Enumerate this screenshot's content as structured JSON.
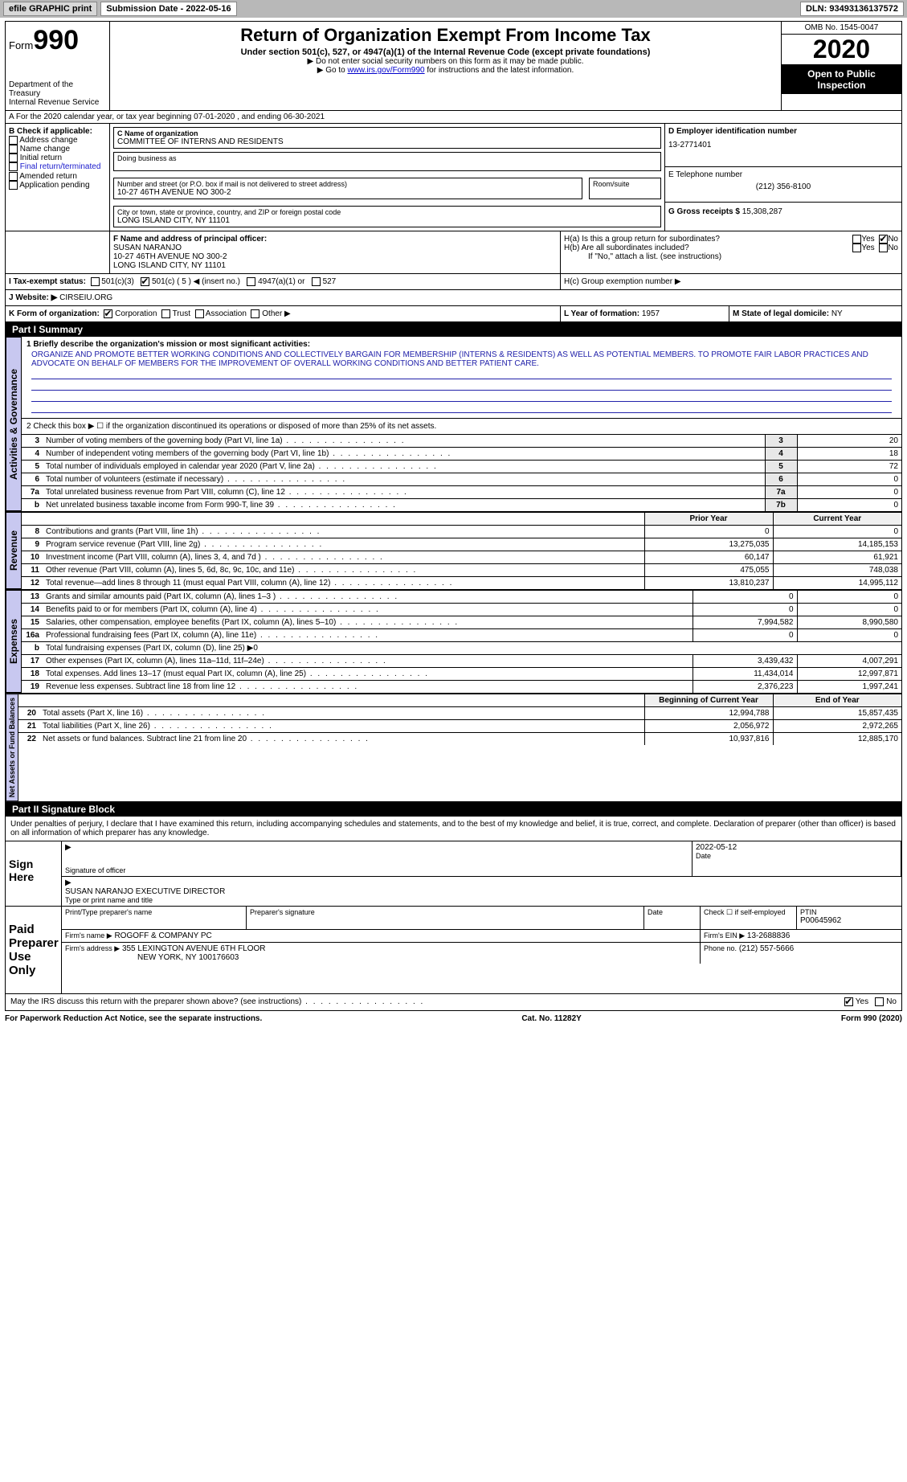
{
  "topbar": {
    "efile_label": "efile GRAPHIC print",
    "submission_label": "Submission Date - 2022-05-16",
    "dln_label": "DLN: 93493136137572"
  },
  "header": {
    "form_word": "Form",
    "form_num": "990",
    "dept1": "Department of the Treasury",
    "dept2": "Internal Revenue Service",
    "title": "Return of Organization Exempt From Income Tax",
    "subtitle": "Under section 501(c), 527, or 4947(a)(1) of the Internal Revenue Code (except private foundations)",
    "note1": "▶ Do not enter social security numbers on this form as it may be made public.",
    "note2_pre": "▶ Go to ",
    "note2_link": "www.irs.gov/Form990",
    "note2_post": " for instructions and the latest information.",
    "omb": "OMB No. 1545-0047",
    "year": "2020",
    "opi": "Open to Public Inspection"
  },
  "line_a": "A For the 2020 calendar year, or tax year beginning 07-01-2020    , and ending 06-30-2021",
  "section_b": {
    "header": "B Check if applicable:",
    "items": [
      "Address change",
      "Name change",
      "Initial return",
      "Final return/terminated",
      "Amended return",
      "Application pending"
    ]
  },
  "section_c": {
    "label": "C Name of organization",
    "name": "COMMITTEE OF INTERNS AND RESIDENTS",
    "dba_label": "Doing business as",
    "addr_label": "Number and street (or P.O. box if mail is not delivered to street address)",
    "room_label": "Room/suite",
    "addr": "10-27 46TH AVENUE NO 300-2",
    "city_label": "City or town, state or province, country, and ZIP or foreign postal code",
    "city": "LONG ISLAND CITY, NY  11101"
  },
  "section_d": {
    "label": "D Employer identification number",
    "value": "13-2771401"
  },
  "section_e": {
    "label": "E Telephone number",
    "value": "(212) 356-8100"
  },
  "section_g": {
    "label": "G Gross receipts $",
    "value": "15,308,287"
  },
  "section_f": {
    "label": "F  Name and address of principal officer:",
    "name": "SUSAN NARANJO",
    "addr1": "10-27 46TH AVENUE NO 300-2",
    "addr2": "LONG ISLAND CITY, NY  11101"
  },
  "section_h": {
    "ha_label": "H(a)  Is this a group return for subordinates?",
    "hb_label": "H(b)  Are all subordinates included?",
    "hb_note": "If \"No,\" attach a list. (see instructions)",
    "hc_label": "H(c)  Group exemption number ▶",
    "yes": "Yes",
    "no": "No"
  },
  "section_i": {
    "label": "I   Tax-exempt status:",
    "opts": [
      "501(c)(3)",
      "501(c) ( 5 ) ◀ (insert no.)",
      "4947(a)(1) or",
      "527"
    ]
  },
  "section_j": {
    "label": "J   Website: ▶",
    "value": "CIRSEIU.ORG"
  },
  "section_k": {
    "label": "K Form of organization:",
    "opts": [
      "Corporation",
      "Trust",
      "Association",
      "Other ▶"
    ]
  },
  "section_l": {
    "label": "L Year of formation:",
    "value": "1957"
  },
  "section_m": {
    "label": "M State of legal domicile:",
    "value": "NY"
  },
  "part1": {
    "hdr": "Part I     Summary",
    "line1_label": "1   Briefly describe the organization's mission or most significant activities:",
    "mission": "ORGANIZE AND PROMOTE BETTER WORKING CONDITIONS AND COLLECTIVELY BARGAIN FOR MEMBERSHIP (INTERNS & RESIDENTS) AS WELL AS POTENTIAL MEMBERS. TO PROMOTE FAIR LABOR PRACTICES AND ADVOCATE ON BEHALF OF MEMBERS FOR THE IMPROVEMENT OF OVERALL WORKING CONDITIONS AND BETTER PATIENT CARE.",
    "line2": "2   Check this box ▶ ☐ if the organization discontinued its operations or disposed of more than 25% of its net assets.",
    "vtab_ag": "Activities & Governance",
    "vtab_rev": "Revenue",
    "vtab_exp": "Expenses",
    "vtab_na": "Net Assets or Fund Balances",
    "ag_rows": [
      {
        "n": "3",
        "lbl": "Number of voting members of the governing body (Part VI, line 1a)",
        "c": "3",
        "v": "20"
      },
      {
        "n": "4",
        "lbl": "Number of independent voting members of the governing body (Part VI, line 1b)",
        "c": "4",
        "v": "18"
      },
      {
        "n": "5",
        "lbl": "Total number of individuals employed in calendar year 2020 (Part V, line 2a)",
        "c": "5",
        "v": "72"
      },
      {
        "n": "6",
        "lbl": "Total number of volunteers (estimate if necessary)",
        "c": "6",
        "v": "0"
      },
      {
        "n": "7a",
        "lbl": "Total unrelated business revenue from Part VIII, column (C), line 12",
        "c": "7a",
        "v": "0"
      },
      {
        "n": "b",
        "lbl": "Net unrelated business taxable income from Form 990-T, line 39",
        "c": "7b",
        "v": "0"
      }
    ],
    "col_prior": "Prior Year",
    "col_curr": "Current Year",
    "rev_rows": [
      {
        "n": "8",
        "lbl": "Contributions and grants (Part VIII, line 1h)",
        "p": "0",
        "c": "0"
      },
      {
        "n": "9",
        "lbl": "Program service revenue (Part VIII, line 2g)",
        "p": "13,275,035",
        "c": "14,185,153"
      },
      {
        "n": "10",
        "lbl": "Investment income (Part VIII, column (A), lines 3, 4, and 7d )",
        "p": "60,147",
        "c": "61,921"
      },
      {
        "n": "11",
        "lbl": "Other revenue (Part VIII, column (A), lines 5, 6d, 8c, 9c, 10c, and 11e)",
        "p": "475,055",
        "c": "748,038"
      },
      {
        "n": "12",
        "lbl": "Total revenue—add lines 8 through 11 (must equal Part VIII, column (A), line 12)",
        "p": "13,810,237",
        "c": "14,995,112"
      }
    ],
    "exp_rows": [
      {
        "n": "13",
        "lbl": "Grants and similar amounts paid (Part IX, column (A), lines 1–3 )",
        "p": "0",
        "c": "0"
      },
      {
        "n": "14",
        "lbl": "Benefits paid to or for members (Part IX, column (A), line 4)",
        "p": "0",
        "c": "0"
      },
      {
        "n": "15",
        "lbl": "Salaries, other compensation, employee benefits (Part IX, column (A), lines 5–10)",
        "p": "7,994,582",
        "c": "8,990,580"
      },
      {
        "n": "16a",
        "lbl": "Professional fundraising fees (Part IX, column (A), line 11e)",
        "p": "0",
        "c": "0"
      },
      {
        "n": "b",
        "lbl": "Total fundraising expenses (Part IX, column (D), line 25) ▶0",
        "p": "",
        "c": ""
      },
      {
        "n": "17",
        "lbl": "Other expenses (Part IX, column (A), lines 11a–11d, 11f–24e)",
        "p": "3,439,432",
        "c": "4,007,291"
      },
      {
        "n": "18",
        "lbl": "Total expenses. Add lines 13–17 (must equal Part IX, column (A), line 25)",
        "p": "11,434,014",
        "c": "12,997,871"
      },
      {
        "n": "19",
        "lbl": "Revenue less expenses. Subtract line 18 from line 12",
        "p": "2,376,223",
        "c": "1,997,241"
      }
    ],
    "col_beg": "Beginning of Current Year",
    "col_end": "End of Year",
    "na_rows": [
      {
        "n": "20",
        "lbl": "Total assets (Part X, line 16)",
        "p": "12,994,788",
        "c": "15,857,435"
      },
      {
        "n": "21",
        "lbl": "Total liabilities (Part X, line 26)",
        "p": "2,056,972",
        "c": "2,972,265"
      },
      {
        "n": "22",
        "lbl": "Net assets or fund balances. Subtract line 21 from line 20",
        "p": "10,937,816",
        "c": "12,885,170"
      }
    ]
  },
  "part2": {
    "hdr": "Part II    Signature Block",
    "decl": "Under penalties of perjury, I declare that I have examined this return, including accompanying schedules and statements, and to the best of my knowledge and belief, it is true, correct, and complete. Declaration of preparer (other than officer) is based on all information of which preparer has any knowledge.",
    "sign_here": "Sign Here",
    "sig_off": "Signature of officer",
    "sig_date": "Date",
    "sig_date_val": "2022-05-12",
    "officer_name": "SUSAN NARANJO  EXECUTIVE DIRECTOR",
    "officer_sub": "Type or print name and title",
    "paid": "Paid Preparer Use Only",
    "prep_name_lbl": "Print/Type preparer's name",
    "prep_sig_lbl": "Preparer's signature",
    "date_lbl": "Date",
    "check_lbl": "Check ☐ if self-employed",
    "ptin_lbl": "PTIN",
    "ptin_val": "P00645962",
    "firm_name_lbl": "Firm's name    ▶",
    "firm_name": "ROGOFF & COMPANY PC",
    "firm_ein_lbl": "Firm's EIN ▶",
    "firm_ein": "13-2688836",
    "firm_addr_lbl": "Firm's address ▶",
    "firm_addr1": "355 LEXINGTON AVENUE 6TH FLOOR",
    "firm_addr2": "NEW YORK, NY  100176603",
    "phone_lbl": "Phone no.",
    "phone": "(212) 557-5666",
    "discuss": "May the IRS discuss this return with the preparer shown above? (see instructions)"
  },
  "footer": {
    "pra": "For Paperwork Reduction Act Notice, see the separate instructions.",
    "cat": "Cat. No. 11282Y",
    "form": "Form 990 (2020)"
  },
  "colors": {
    "link": "#1a1acc",
    "vtab_bg": "#c8c8f0",
    "mission_underline": "#2222aa"
  }
}
